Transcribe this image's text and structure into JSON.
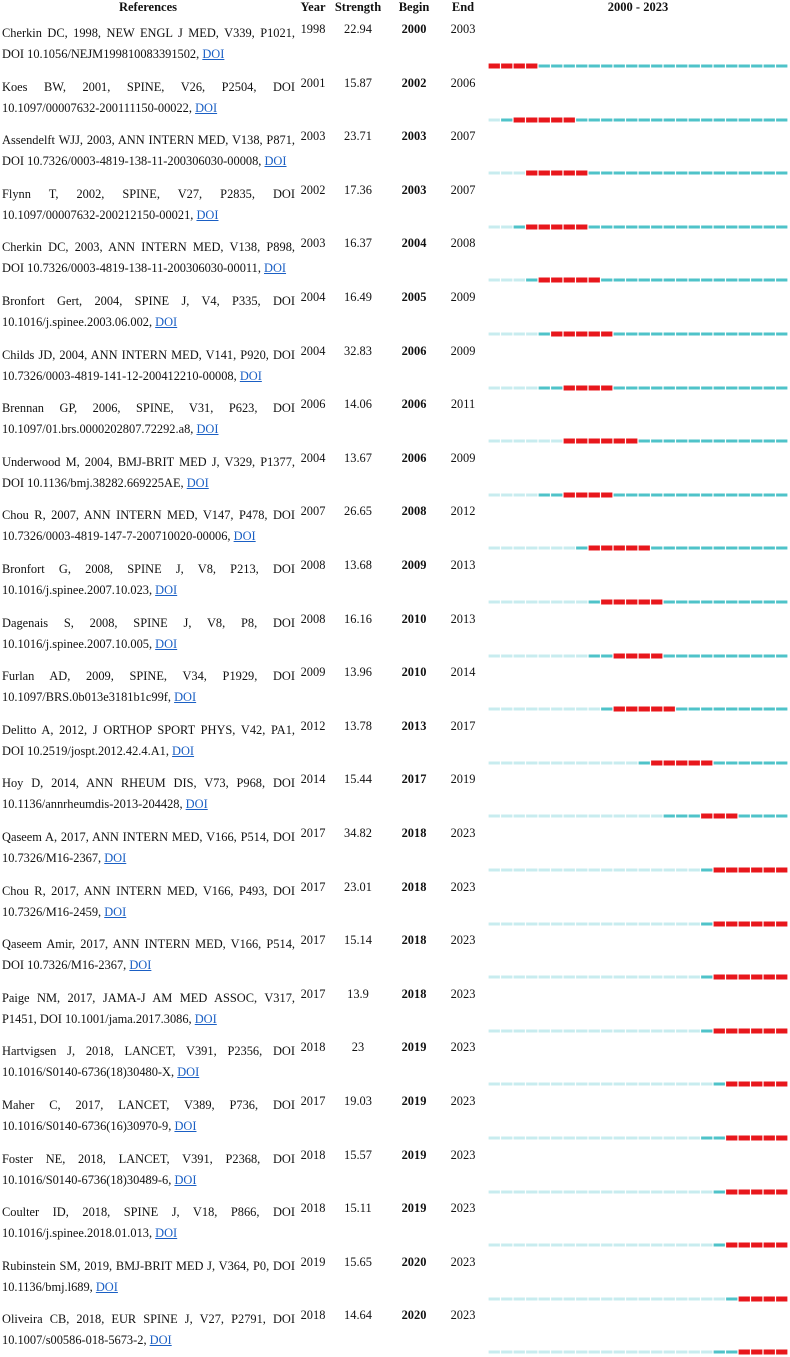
{
  "header": {
    "references": "References",
    "year": "Year",
    "strength": "Strength",
    "begin": "Begin",
    "end": "End",
    "span": "2000 - 2023"
  },
  "colors": {
    "light": "#c8ecef",
    "teal": "#4fc3c9",
    "burst": "#e8171c",
    "link": "#1a5fc4"
  },
  "chart_data": {
    "type": "table",
    "timeline_start": 2000,
    "timeline_end": 2023,
    "rows": [
      {
        "ref_text": "Cherkin DC, 1998, NEW ENGL J MED, V339, P1021, DOI 10.1056/NEJM199810083391502,",
        "doi": "DOI",
        "year": 1998,
        "strength": "22.94",
        "begin": 2000,
        "end": 2003
      },
      {
        "ref_text": "Koes BW, 2001, SPINE, V26, P2504, DOI 10.1097/00007632-200111150-00022,",
        "doi": "DOI",
        "year": 2001,
        "strength": "15.87",
        "begin": 2002,
        "end": 2006
      },
      {
        "ref_text": "Assendelft WJJ, 2003, ANN INTERN MED, V138, P871, DOI 10.7326/0003-4819-138-11-200306030-00008,",
        "doi": "DOI",
        "year": 2003,
        "strength": "23.71",
        "begin": 2003,
        "end": 2007
      },
      {
        "ref_text": "Flynn T, 2002, SPINE, V27, P2835, DOI 10.1097/00007632-200212150-00021,",
        "doi": "DOI",
        "year": 2002,
        "strength": "17.36",
        "begin": 2003,
        "end": 2007
      },
      {
        "ref_text": "Cherkin DC, 2003, ANN INTERN MED, V138, P898, DOI 10.7326/0003-4819-138-11-200306030-00011,",
        "doi": "DOI",
        "year": 2003,
        "strength": "16.37",
        "begin": 2004,
        "end": 2008
      },
      {
        "ref_text": "Bronfort Gert, 2004, SPINE J, V4, P335, DOI 10.1016/j.spinee.2003.06.002,",
        "doi": "DOI",
        "year": 2004,
        "strength": "16.49",
        "begin": 2005,
        "end": 2009
      },
      {
        "ref_text": "Childs JD, 2004, ANN INTERN MED, V141, P920, DOI 10.7326/0003-4819-141-12-200412210-00008,",
        "doi": "DOI",
        "year": 2004,
        "strength": "32.83",
        "begin": 2006,
        "end": 2009
      },
      {
        "ref_text": "Brennan GP, 2006, SPINE, V31, P623, DOI 10.1097/01.brs.0000202807.72292.a8,",
        "doi": "DOI",
        "year": 2006,
        "strength": "14.06",
        "begin": 2006,
        "end": 2011
      },
      {
        "ref_text": "Underwood M, 2004, BMJ-BRIT MED J, V329, P1377, DOI 10.1136/bmj.38282.669225AE,",
        "doi": "DOI",
        "year": 2004,
        "strength": "13.67",
        "begin": 2006,
        "end": 2009
      },
      {
        "ref_text": "Chou R, 2007, ANN INTERN MED, V147, P478, DOI 10.7326/0003-4819-147-7-200710020-00006,",
        "doi": "DOI",
        "year": 2007,
        "strength": "26.65",
        "begin": 2008,
        "end": 2012
      },
      {
        "ref_text": "Bronfort G, 2008, SPINE J, V8, P213, DOI 10.1016/j.spinee.2007.10.023,",
        "doi": "DOI",
        "year": 2008,
        "strength": "13.68",
        "begin": 2009,
        "end": 2013
      },
      {
        "ref_text": "Dagenais S, 2008, SPINE J, V8, P8, DOI 10.1016/j.spinee.2007.10.005,",
        "doi": "DOI",
        "year": 2008,
        "strength": "16.16",
        "begin": 2010,
        "end": 2013
      },
      {
        "ref_text": "Furlan AD, 2009, SPINE, V34, P1929, DOI 10.1097/BRS.0b013e3181b1c99f,",
        "doi": "DOI",
        "year": 2009,
        "strength": "13.96",
        "begin": 2010,
        "end": 2014
      },
      {
        "ref_text": "Delitto A, 2012, J ORTHOP SPORT PHYS, V42, PA1, DOI 10.2519/jospt.2012.42.4.A1,",
        "doi": "DOI",
        "year": 2012,
        "strength": "13.78",
        "begin": 2013,
        "end": 2017
      },
      {
        "ref_text": "Hoy D, 2014, ANN RHEUM DIS, V73, P968, DOI 10.1136/annrheumdis-2013-204428,",
        "doi": "DOI",
        "year": 2014,
        "strength": "15.44",
        "begin": 2017,
        "end": 2019
      },
      {
        "ref_text": "Qaseem A, 2017, ANN INTERN MED, V166, P514, DOI 10.7326/M16-2367,",
        "doi": "DOI",
        "year": 2017,
        "strength": "34.82",
        "begin": 2018,
        "end": 2023
      },
      {
        "ref_text": "Chou R, 2017, ANN INTERN MED, V166, P493, DOI 10.7326/M16-2459,",
        "doi": "DOI",
        "year": 2017,
        "strength": "23.01",
        "begin": 2018,
        "end": 2023
      },
      {
        "ref_text": "Qaseem Amir, 2017, ANN INTERN MED, V166, P514, DOI 10.7326/M16-2367,",
        "doi": "DOI",
        "year": 2017,
        "strength": "15.14",
        "begin": 2018,
        "end": 2023
      },
      {
        "ref_text": "Paige NM, 2017, JAMA-J AM MED ASSOC, V317, P1451, DOI 10.1001/jama.2017.3086,",
        "doi": "DOI",
        "year": 2017,
        "strength": "13.9",
        "begin": 2018,
        "end": 2023
      },
      {
        "ref_text": "Hartvigsen J, 2018, LANCET, V391, P2356, DOI 10.1016/S0140-6736(18)30480-X,",
        "doi": "DOI",
        "year": 2018,
        "strength": "23",
        "begin": 2019,
        "end": 2023
      },
      {
        "ref_text": "Maher C, 2017, LANCET, V389, P736, DOI 10.1016/S0140-6736(16)30970-9,",
        "doi": "DOI",
        "year": 2017,
        "strength": "19.03",
        "begin": 2019,
        "end": 2023
      },
      {
        "ref_text": "Foster NE, 2018, LANCET, V391, P2368, DOI 10.1016/S0140-6736(18)30489-6,",
        "doi": "DOI",
        "year": 2018,
        "strength": "15.57",
        "begin": 2019,
        "end": 2023
      },
      {
        "ref_text": "Coulter ID, 2018, SPINE J, V18, P866, DOI 10.1016/j.spinee.2018.01.013,",
        "doi": "DOI",
        "year": 2018,
        "strength": "15.11",
        "begin": 2019,
        "end": 2023
      },
      {
        "ref_text": "Rubinstein SM, 2019, BMJ-BRIT MED J, V364, P0, DOI 10.1136/bmj.l689,",
        "doi": "DOI",
        "year": 2019,
        "strength": "15.65",
        "begin": 2020,
        "end": 2023
      },
      {
        "ref_text": "Oliveira CB, 2018, EUR SPINE J, V27, P2791, DOI 10.1007/s00586-018-5673-2,",
        "doi": "DOI",
        "year": 2018,
        "strength": "14.64",
        "begin": 2020,
        "end": 2023
      }
    ]
  }
}
